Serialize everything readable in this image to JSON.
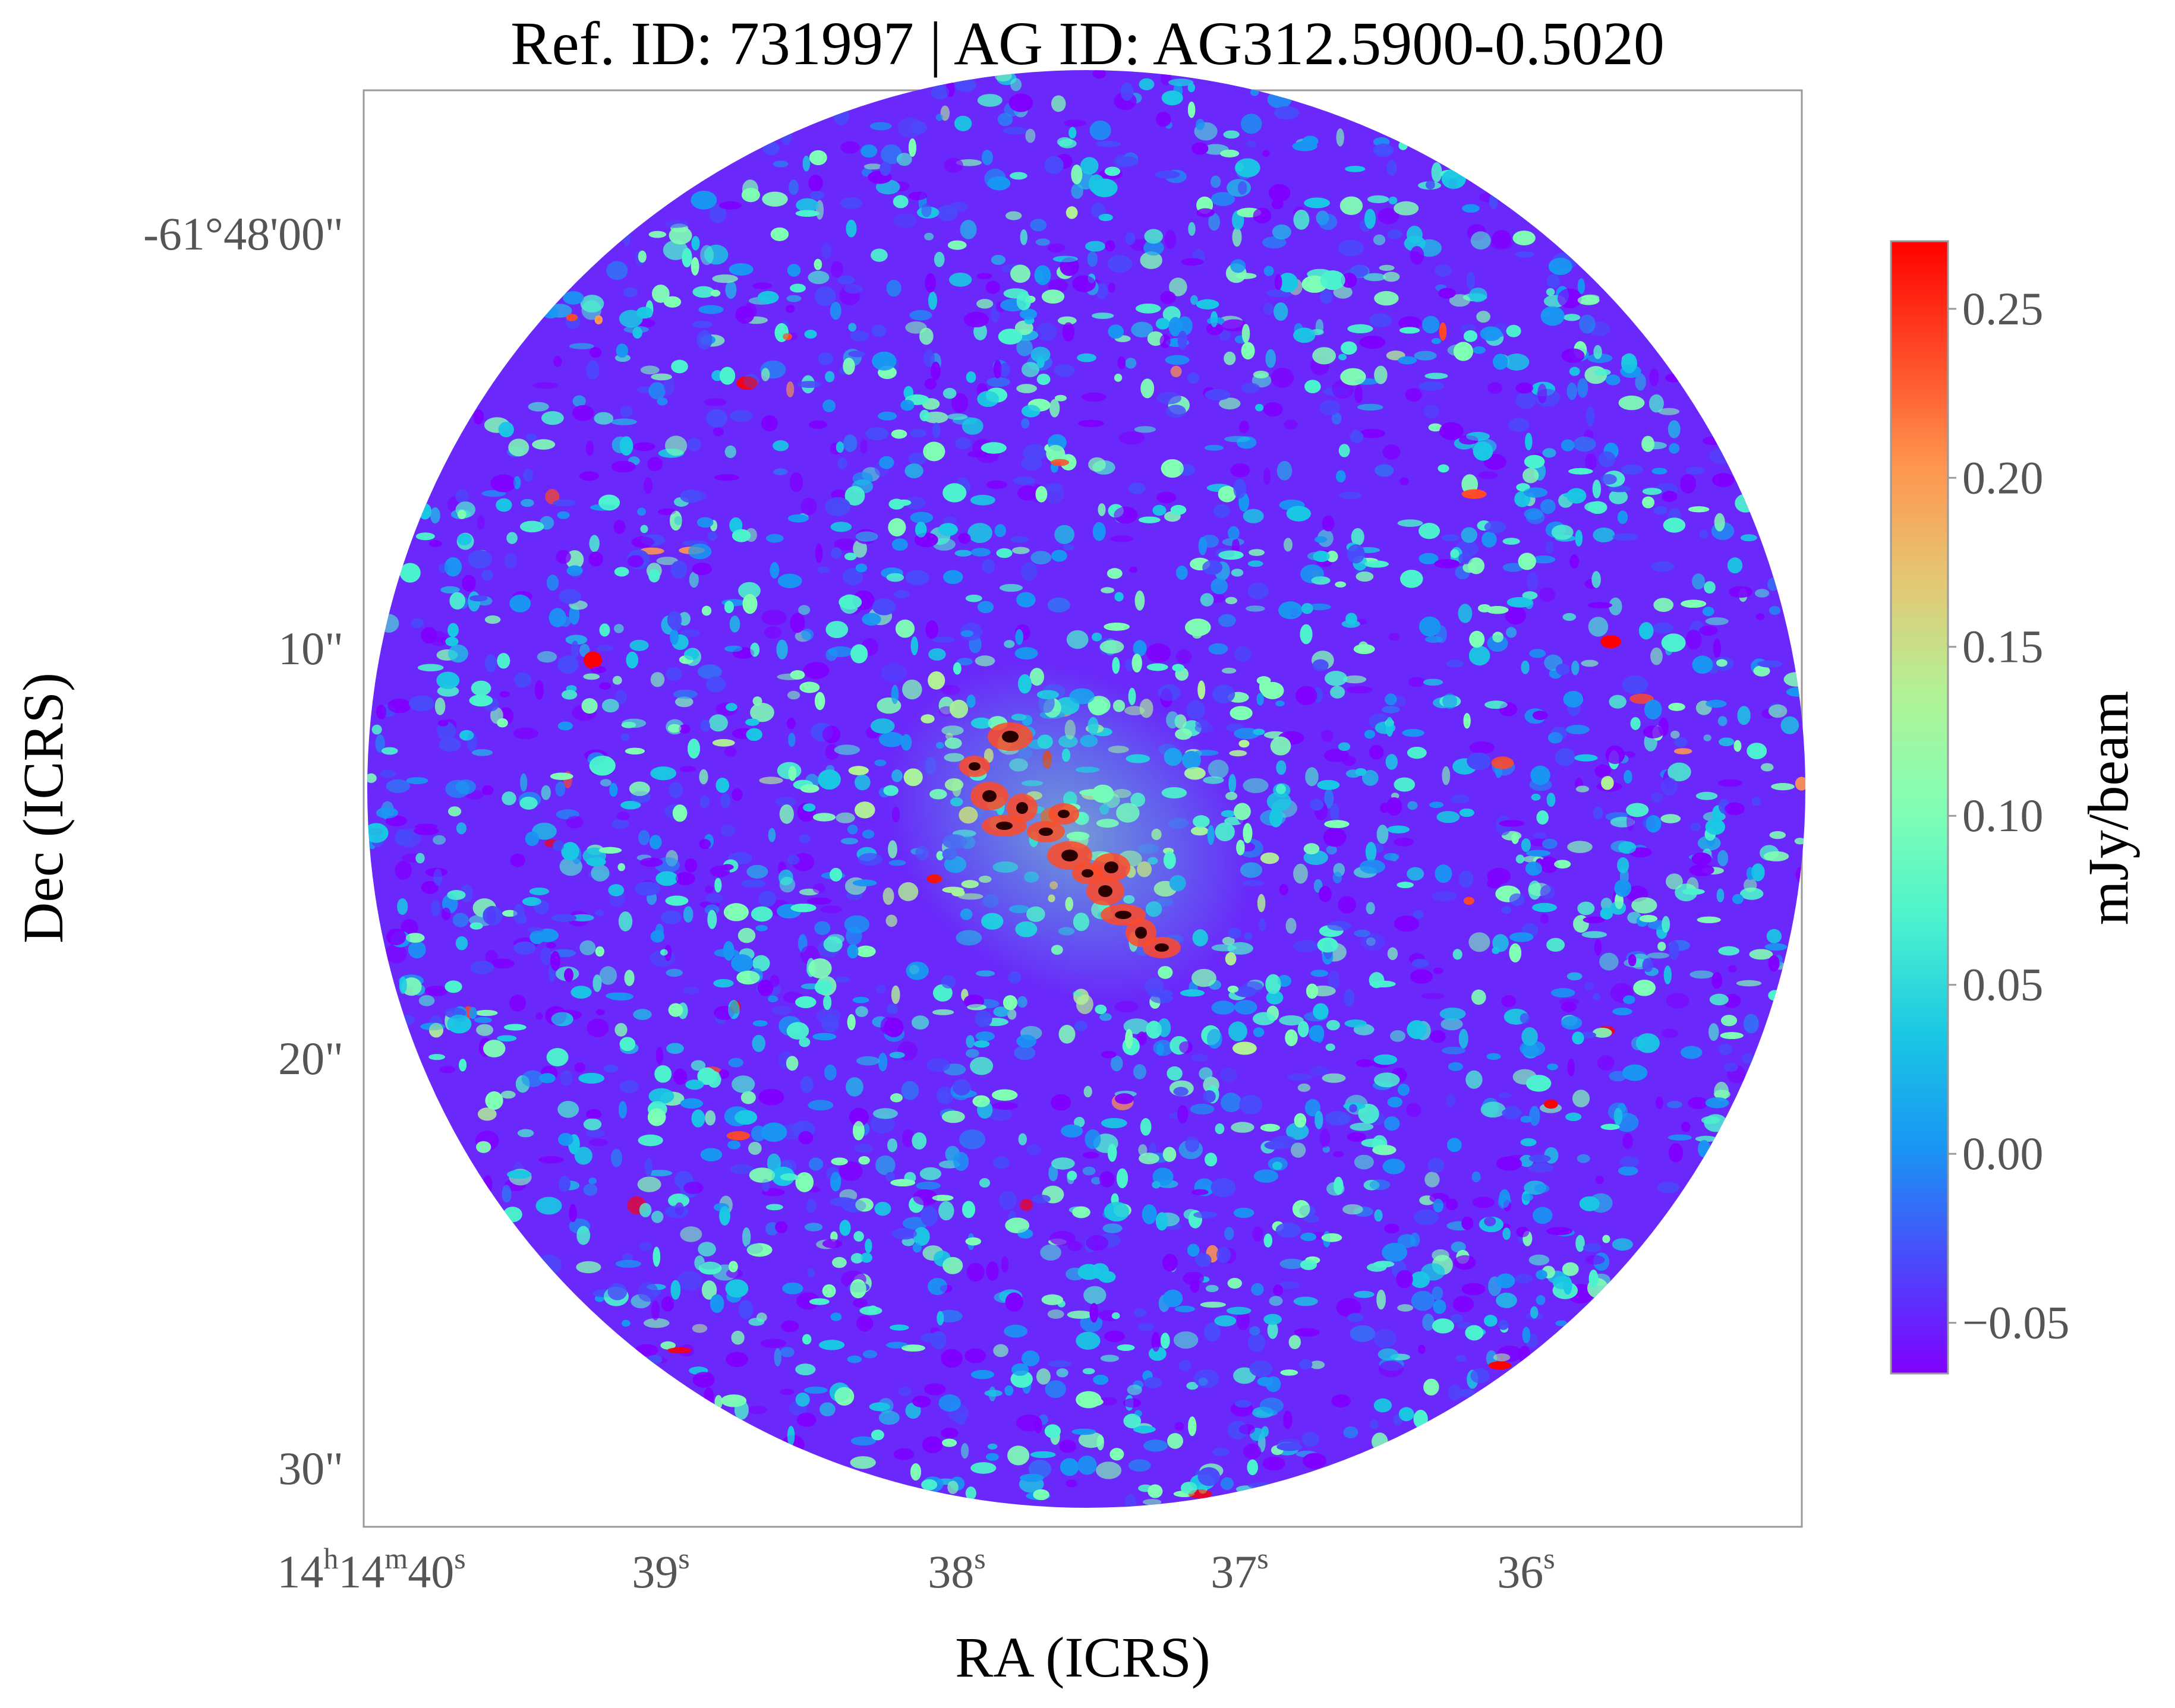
{
  "chart_data": {
    "type": "heatmap",
    "title": "Ref. ID: 731997 | AG ID: AG312.5900-0.5020",
    "xlabel": "RA (ICRS)",
    "ylabel": "Dec (ICRS)",
    "x_ticks": [
      {
        "main": "14",
        "sup1": "h",
        "mid": "14",
        "sup2": "m",
        "last": "40",
        "sup3": "s"
      },
      {
        "main": "39",
        "sup": "s"
      },
      {
        "main": "38",
        "sup": "s"
      },
      {
        "main": "37",
        "sup": "s"
      },
      {
        "main": "36",
        "sup": "s"
      }
    ],
    "y_ticks": [
      "-61°48'00\"",
      "10\"",
      "20\"",
      "30\""
    ],
    "colorbar": {
      "label": "mJy/beam",
      "colormap": "rainbow",
      "range": [
        -0.065,
        0.27
      ],
      "ticks": [
        "0.25",
        "0.20",
        "0.15",
        "0.10",
        "0.05",
        "0.00",
        "−0.05"
      ],
      "tick_values": [
        0.25,
        0.2,
        0.15,
        0.1,
        0.05,
        0.0,
        -0.05
      ]
    },
    "field_of_view": "circular",
    "emission_feature": "elongated clump structure near image center, oriented NW-SE, with peak pixels near 0.27 mJy/beam",
    "grid": false
  },
  "colors": {
    "frame": "#9a9a9a",
    "tick_text": "#555555",
    "label_text": "#000000",
    "rainbow": [
      "#8000ff",
      "#4a4afb",
      "#1996f3",
      "#1ac7e4",
      "#4cf2ce",
      "#80ffb4",
      "#b2f296",
      "#e4c774",
      "#ff964f",
      "#ff4a27",
      "#ff0000"
    ]
  }
}
